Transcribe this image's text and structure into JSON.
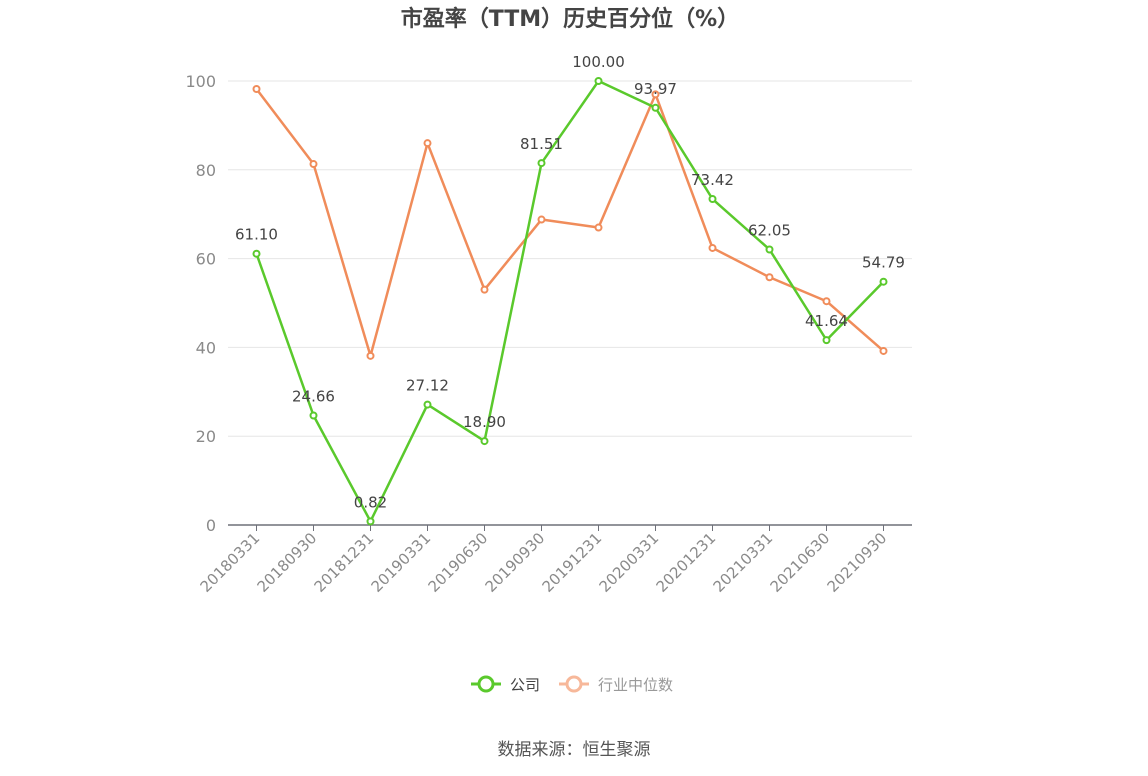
{
  "chart_data": {
    "type": "line",
    "title": "市盈率（TTM）历史百分位（%）",
    "categories": [
      "20180331",
      "20180930",
      "20181231",
      "20190331",
      "20190630",
      "20190930",
      "20191231",
      "20200331",
      "20201231",
      "20210331",
      "20210630",
      "20210930"
    ],
    "ylim": [
      0,
      100
    ],
    "yticks": [
      0,
      20,
      40,
      60,
      80,
      100
    ],
    "grid": true,
    "legend_position": "bottom",
    "series": [
      {
        "name": "公司",
        "color": "#5ac92c",
        "values": [
          61.1,
          24.66,
          0.82,
          27.12,
          18.9,
          81.51,
          100.0,
          93.97,
          73.42,
          62.05,
          41.64,
          54.79
        ],
        "labels": [
          "61.10",
          "24.66",
          "0.82",
          "27.12",
          "18.90",
          "81.51",
          "100.00",
          "93.97",
          "73.42",
          "62.05",
          "41.64",
          "54.79"
        ]
      },
      {
        "name": "行业中位数",
        "color": "#f08c5a",
        "values": [
          98.2,
          81.3,
          38.1,
          86.0,
          53.0,
          68.8,
          67.0,
          97.0,
          62.4,
          55.8,
          50.4,
          39.2
        ]
      }
    ]
  },
  "legend": {
    "company_label": "公司",
    "industry_label": "行业中位数"
  },
  "source": "数据来源：恒生聚源"
}
